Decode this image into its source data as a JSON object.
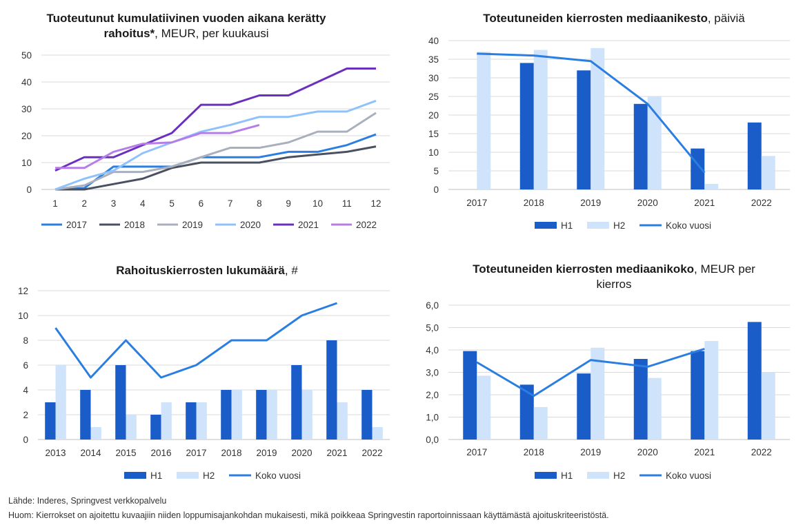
{
  "charts": [
    {
      "type": "line",
      "title_bold": "Tuoteutunut kumulatiivinen vuoden aikana kerätty rahoitus*",
      "title_rest": ", MEUR, per kuukausi",
      "x": [
        "1",
        "2",
        "3",
        "4",
        "5",
        "6",
        "7",
        "8",
        "9",
        "10",
        "11",
        "12"
      ],
      "ylim": [
        0,
        50
      ],
      "yticks": [
        "0",
        "10",
        "20",
        "30",
        "40",
        "50"
      ],
      "series": [
        {
          "name": "2017",
          "color": "#2a7de1",
          "values": [
            0,
            0.5,
            8.5,
            8.5,
            8.5,
            12,
            12,
            12,
            14,
            14,
            16.5,
            20.5
          ]
        },
        {
          "name": "2018",
          "color": "#4a5060",
          "values": [
            0,
            0,
            2,
            4,
            8,
            10,
            10,
            10,
            12,
            13,
            14,
            16
          ]
        },
        {
          "name": "2019",
          "color": "#a9afbd",
          "values": [
            0,
            1.5,
            6.5,
            6.5,
            8.5,
            12,
            15.5,
            15.5,
            17.5,
            21.5,
            21.5,
            28.5
          ]
        },
        {
          "name": "2020",
          "color": "#8fc1fb",
          "values": [
            0,
            4,
            7,
            13.5,
            17.5,
            21.5,
            24,
            27,
            27,
            29,
            29,
            33
          ]
        },
        {
          "name": "2021",
          "color": "#6b2fbf",
          "values": [
            7,
            12,
            12,
            16.5,
            21,
            31.5,
            31.5,
            35,
            35,
            40,
            45,
            45
          ]
        },
        {
          "name": "2022",
          "color": "#b57de8",
          "values": [
            8,
            8,
            14,
            17,
            17.5,
            21,
            21,
            24
          ]
        }
      ]
    },
    {
      "type": "bar",
      "title_bold": "Toteutuneiden kierrosten mediaanikesto",
      "title_rest": ", päiviä",
      "categories": [
        "2017",
        "2018",
        "2019",
        "2020",
        "2021",
        "2022"
      ],
      "ylim": [
        0,
        40
      ],
      "yticks": [
        "0",
        "5",
        "10",
        "15",
        "20",
        "25",
        "30",
        "35",
        "40"
      ],
      "series": [
        {
          "name": "H1",
          "kind": "bar",
          "color": "#1a5dc8",
          "values": [
            null,
            34,
            32,
            23,
            11,
            18
          ]
        },
        {
          "name": "H2",
          "kind": "bar",
          "color": "#cfe3fb",
          "values": [
            37,
            37.5,
            38,
            25,
            1.5,
            9
          ]
        },
        {
          "name": "Koko vuosi",
          "kind": "line",
          "color": "#2a7de1",
          "values": [
            36.5,
            36,
            34.5,
            23,
            4.5,
            null
          ]
        }
      ]
    },
    {
      "type": "bar",
      "title_bold": "Rahoituskierrosten lukumäärä",
      "title_rest": ", #",
      "categories": [
        "2013",
        "2014",
        "2015",
        "2016",
        "2017",
        "2018",
        "2019",
        "2020",
        "2021",
        "2022"
      ],
      "ylim": [
        0,
        12
      ],
      "yticks": [
        "0",
        "2",
        "4",
        "6",
        "8",
        "10",
        "12"
      ],
      "series": [
        {
          "name": "H1",
          "kind": "bar",
          "color": "#1a5dc8",
          "values": [
            3,
            4,
            6,
            2,
            3,
            4,
            4,
            6,
            8,
            4
          ]
        },
        {
          "name": "H2",
          "kind": "bar",
          "color": "#cfe3fb",
          "values": [
            6,
            1,
            2,
            3,
            3,
            4,
            4,
            4,
            3,
            1
          ]
        },
        {
          "name": "Koko vuosi",
          "kind": "line",
          "color": "#2a7de1",
          "values": [
            9,
            5,
            8,
            5,
            6,
            8,
            8,
            10,
            11,
            null
          ]
        }
      ]
    },
    {
      "type": "bar",
      "title_bold": "Toteutuneiden kierrosten mediaanikoko",
      "title_rest": ", MEUR per kierros",
      "categories": [
        "2017",
        "2018",
        "2019",
        "2020",
        "2021",
        "2022"
      ],
      "ylim": [
        0,
        6
      ],
      "yticks": [
        "0,0",
        "1,0",
        "2,0",
        "3,0",
        "4,0",
        "5,0",
        "6,0"
      ],
      "series": [
        {
          "name": "H1",
          "kind": "bar",
          "color": "#1a5dc8",
          "values": [
            3.95,
            2.45,
            2.95,
            3.6,
            3.95,
            5.25
          ]
        },
        {
          "name": "H2",
          "kind": "bar",
          "color": "#cfe3fb",
          "values": [
            2.85,
            1.45,
            4.1,
            2.75,
            4.4,
            3.0
          ]
        },
        {
          "name": "Koko vuosi",
          "kind": "line",
          "color": "#2a7de1",
          "values": [
            3.45,
            1.95,
            3.55,
            3.25,
            4.05,
            null
          ]
        }
      ]
    }
  ],
  "footer": {
    "source": "Lähde: Inderes, Springvest verkkopalvelu",
    "note": "Huom: Kierrokset on ajoitettu kuvaajiin niiden loppumisajankohdan mukaisesti, mikä poikkeaa Springvestin raportoinnissaan käyttämästä ajoituskriteeristöstä."
  }
}
